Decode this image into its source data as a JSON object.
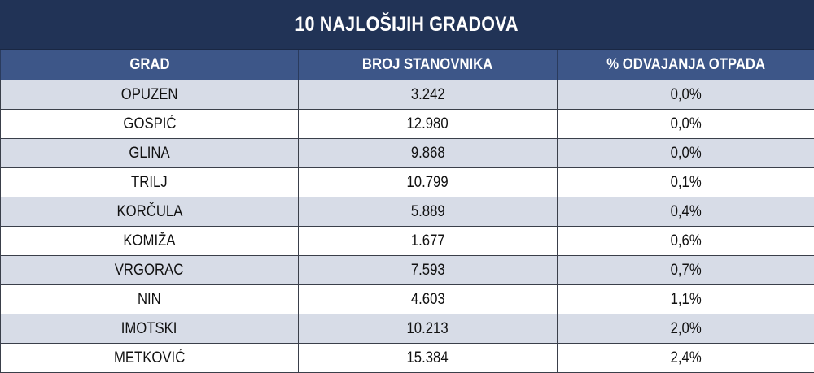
{
  "colors": {
    "title_bg": "#213356",
    "header_bg": "#3d5688",
    "row_shade": "#d7dce7",
    "row_plain": "#ffffff"
  },
  "chart_data": {
    "type": "table",
    "title": "10 NAJLOŠIJIH GRADOVA",
    "columns": [
      "GRAD",
      "BROJ STANOVNIKA",
      "% ODVAJANJA OTPADA"
    ],
    "rows": [
      [
        "OPUZEN",
        "3.242",
        "0,0%"
      ],
      [
        "GOSPIĆ",
        "12.980",
        "0,0%"
      ],
      [
        "GLINA",
        "9.868",
        "0,0%"
      ],
      [
        "TRILJ",
        "10.799",
        "0,1%"
      ],
      [
        "KORČULA",
        "5.889",
        "0,4%"
      ],
      [
        "KOMIŽA",
        "1.677",
        "0,6%"
      ],
      [
        "VRGORAC",
        "7.593",
        "0,7%"
      ],
      [
        "NIN",
        "4.603",
        "1,1%"
      ],
      [
        "IMOTSKI",
        "10.213",
        "2,0%"
      ],
      [
        "METKOVIĆ",
        "15.384",
        "2,4%"
      ]
    ]
  }
}
